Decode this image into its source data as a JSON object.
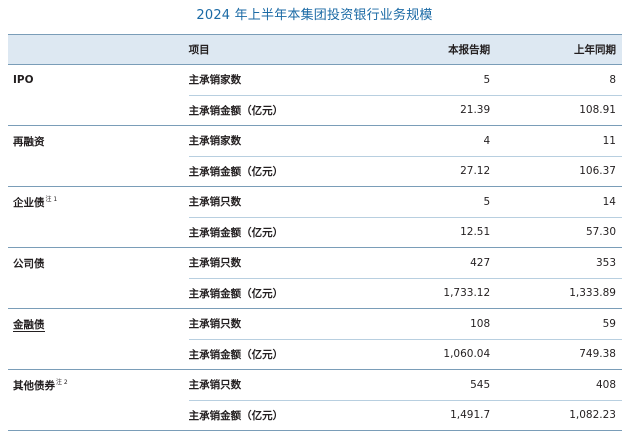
{
  "title": "2024 年上半年本集团投资银行业务规模",
  "header": {
    "col_item": "项目",
    "col_current": "本报告期",
    "col_previous": "上年同期"
  },
  "groups": [
    {
      "name": "IPO",
      "note": "",
      "rows": [
        {
          "item": "主承销家数",
          "current": "5",
          "previous": "8"
        },
        {
          "item": "主承销金额（亿元）",
          "current": "21.39",
          "previous": "108.91"
        }
      ]
    },
    {
      "name": "再融资",
      "note": "",
      "rows": [
        {
          "item": "主承销家数",
          "current": "4",
          "previous": "11"
        },
        {
          "item": "主承销金额（亿元）",
          "current": "27.12",
          "previous": "106.37"
        }
      ]
    },
    {
      "name": "企业债",
      "note": "注 1",
      "rows": [
        {
          "item": "主承销只数",
          "current": "5",
          "previous": "14"
        },
        {
          "item": "主承销金额（亿元）",
          "current": "12.51",
          "previous": "57.30"
        }
      ]
    },
    {
      "name": "公司债",
      "note": "",
      "rows": [
        {
          "item": "主承销只数",
          "current": "427",
          "previous": "353"
        },
        {
          "item": "主承销金额（亿元）",
          "current": "1,733.12",
          "previous": "1,333.89"
        }
      ]
    },
    {
      "name": "金融债",
      "note": "",
      "rows": [
        {
          "item": "主承销只数",
          "current": "108",
          "previous": "59"
        },
        {
          "item": "主承销金额（亿元）",
          "current": "1,060.04",
          "previous": "749.38"
        }
      ]
    },
    {
      "name": "其他债券",
      "note": "注 2",
      "rows": [
        {
          "item": "主承销只数",
          "current": "545",
          "previous": "408"
        },
        {
          "item": "主承销金额（亿元）",
          "current": "1,491.7",
          "previous": "1,082.23"
        }
      ]
    }
  ]
}
